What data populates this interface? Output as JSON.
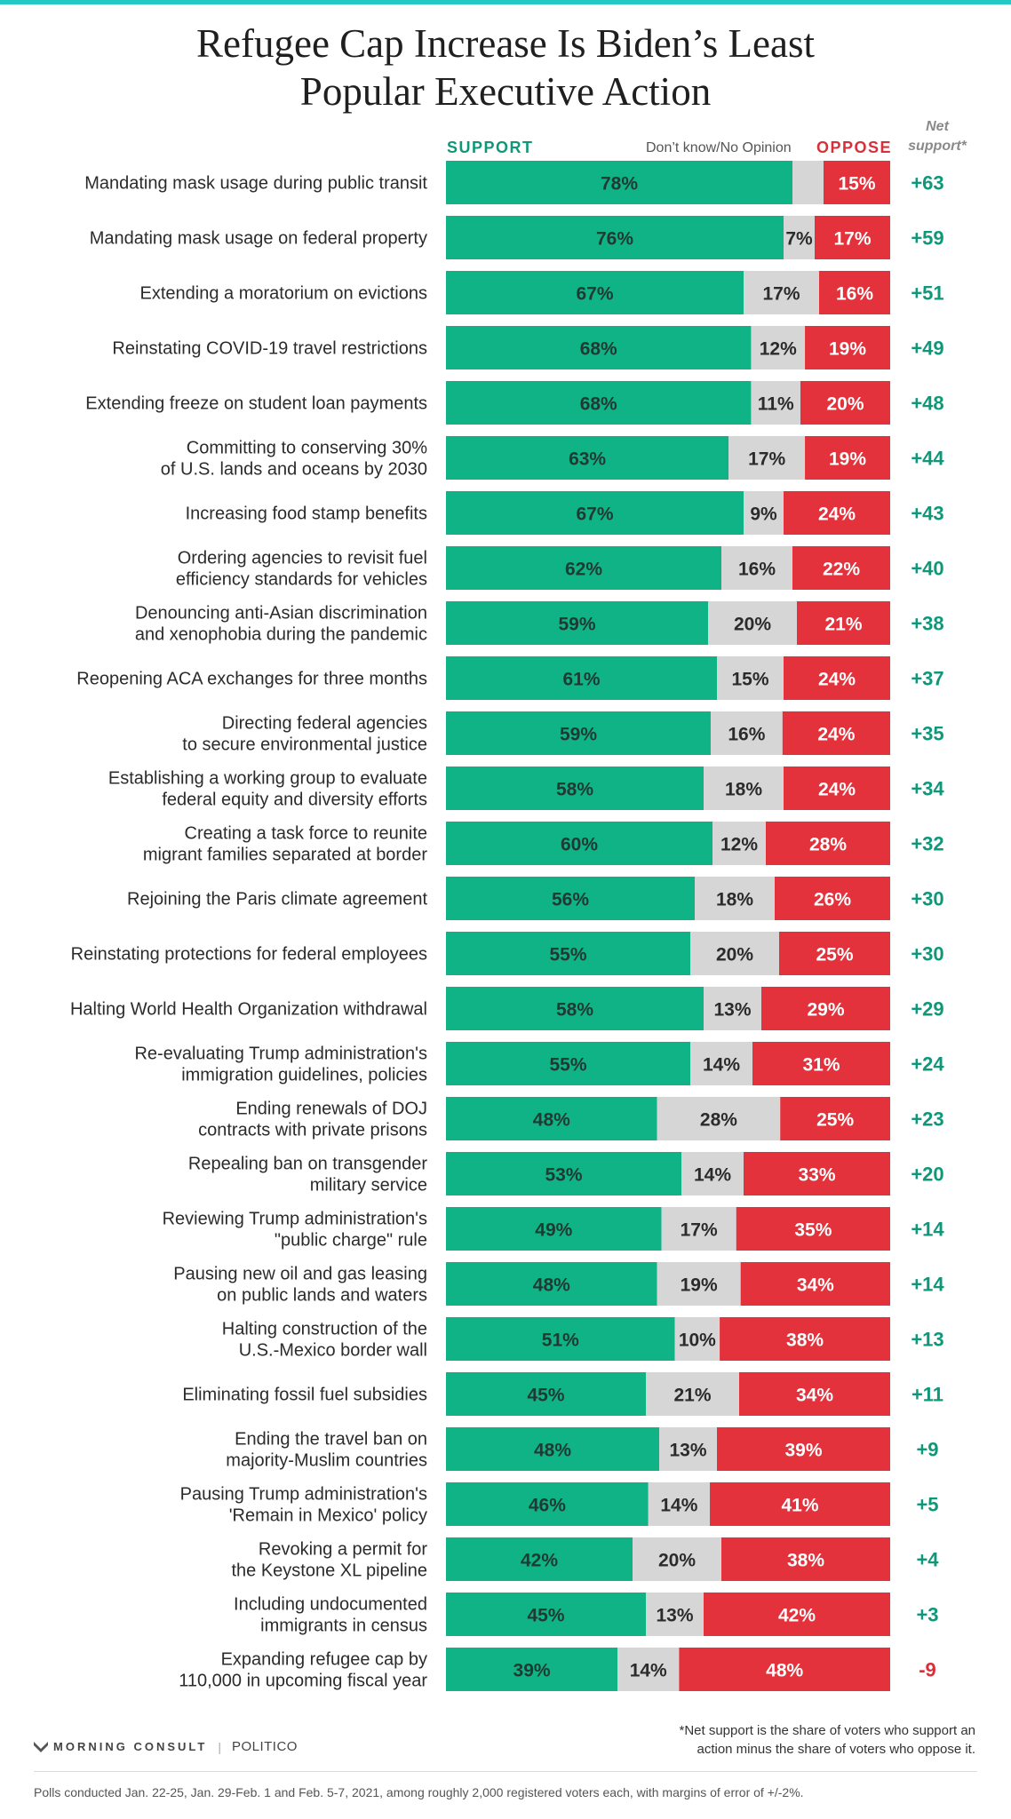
{
  "title_lines": [
    "Refugee Cap Increase Is Biden’s Least",
    "Popular Executive Action"
  ],
  "headers": {
    "support": "SUPPORT",
    "dont_know": "Don’t know/No Opinion",
    "oppose": "OPPOSE",
    "net_line1": "Net",
    "net_line2": "support*"
  },
  "colors": {
    "support": "#10b386",
    "dont_know": "#d6d6d6",
    "oppose": "#e3323b",
    "net_positive": "#10977a",
    "net_negative": "#d8303b",
    "accent_bar": "#25c9c3"
  },
  "chart_data": {
    "type": "bar",
    "orientation": "horizontal",
    "stacked": true,
    "title": "Refugee Cap Increase Is Biden’s Least Popular Executive Action",
    "series_names": [
      "Support",
      "Don’t know/No Opinion",
      "Oppose"
    ],
    "rows": [
      {
        "label": [
          "Mandating mask usage during public transit"
        ],
        "support": 78,
        "dk": 7,
        "oppose": 15,
        "dk_label": "",
        "net": "+63"
      },
      {
        "label": [
          "Mandating mask usage on federal property"
        ],
        "support": 76,
        "dk": 7,
        "oppose": 17,
        "dk_label": "7%",
        "net": "+59"
      },
      {
        "label": [
          "Extending a moratorium on evictions"
        ],
        "support": 67,
        "dk": 17,
        "oppose": 16,
        "dk_label": "17%",
        "net": "+51"
      },
      {
        "label": [
          "Reinstating COVID-19 travel restrictions"
        ],
        "support": 68,
        "dk": 12,
        "oppose": 19,
        "dk_label": "12%",
        "net": "+49"
      },
      {
        "label": [
          "Extending freeze on student loan payments"
        ],
        "support": 68,
        "dk": 11,
        "oppose": 20,
        "dk_label": "11%",
        "net": "+48"
      },
      {
        "label": [
          "Committing to conserving 30%",
          "of U.S. lands and oceans by 2030"
        ],
        "support": 63,
        "dk": 17,
        "oppose": 19,
        "dk_label": "17%",
        "net": "+44"
      },
      {
        "label": [
          "Increasing food stamp benefits"
        ],
        "support": 67,
        "dk": 9,
        "oppose": 24,
        "dk_label": "9%",
        "net": "+43"
      },
      {
        "label": [
          "Ordering agencies to revisit fuel",
          "efficiency standards for vehicles"
        ],
        "support": 62,
        "dk": 16,
        "oppose": 22,
        "dk_label": "16%",
        "net": "+40"
      },
      {
        "label": [
          "Denouncing anti-Asian discrimination",
          "and xenophobia during the pandemic"
        ],
        "support": 59,
        "dk": 20,
        "oppose": 21,
        "dk_label": "20%",
        "net": "+38"
      },
      {
        "label": [
          "Reopening ACA exchanges for three months"
        ],
        "support": 61,
        "dk": 15,
        "oppose": 24,
        "dk_label": "15%",
        "net": "+37"
      },
      {
        "label": [
          "Directing federal agencies",
          "to secure environmental justice"
        ],
        "support": 59,
        "dk": 16,
        "oppose": 24,
        "dk_label": "16%",
        "net": "+35"
      },
      {
        "label": [
          "Establishing a working group to evaluate",
          "federal equity and diversity efforts"
        ],
        "support": 58,
        "dk": 18,
        "oppose": 24,
        "dk_label": "18%",
        "net": "+34"
      },
      {
        "label": [
          "Creating a task force to reunite",
          "migrant families separated at border"
        ],
        "support": 60,
        "dk": 12,
        "oppose": 28,
        "dk_label": "12%",
        "net": "+32"
      },
      {
        "label": [
          "Rejoining the Paris climate agreement"
        ],
        "support": 56,
        "dk": 18,
        "oppose": 26,
        "dk_label": "18%",
        "net": "+30"
      },
      {
        "label": [
          "Reinstating protections for federal employees"
        ],
        "support": 55,
        "dk": 20,
        "oppose": 25,
        "dk_label": "20%",
        "net": "+30"
      },
      {
        "label": [
          "Halting World Health Organization withdrawal"
        ],
        "support": 58,
        "dk": 13,
        "oppose": 29,
        "dk_label": "13%",
        "net": "+29"
      },
      {
        "label": [
          "Re-evaluating Trump administration's",
          "immigration guidelines, policies"
        ],
        "support": 55,
        "dk": 14,
        "oppose": 31,
        "dk_label": "14%",
        "net": "+24"
      },
      {
        "label": [
          "Ending renewals of DOJ",
          "contracts with private prisons"
        ],
        "support": 48,
        "dk": 28,
        "oppose": 25,
        "dk_label": "28%",
        "net": "+23"
      },
      {
        "label": [
          "Repealing ban on transgender",
          "military service"
        ],
        "support": 53,
        "dk": 14,
        "oppose": 33,
        "dk_label": "14%",
        "net": "+20"
      },
      {
        "label": [
          "Reviewing Trump administration's",
          "\"public charge\" rule"
        ],
        "support": 49,
        "dk": 17,
        "oppose": 35,
        "dk_label": "17%",
        "net": "+14"
      },
      {
        "label": [
          "Pausing new oil and gas leasing",
          "on public lands and waters"
        ],
        "support": 48,
        "dk": 19,
        "oppose": 34,
        "dk_label": "19%",
        "net": "+14"
      },
      {
        "label": [
          "Halting construction of the",
          "U.S.-Mexico border wall"
        ],
        "support": 51,
        "dk": 10,
        "oppose": 38,
        "dk_label": "10%",
        "net": "+13"
      },
      {
        "label": [
          "Eliminating fossil fuel subsidies"
        ],
        "support": 45,
        "dk": 21,
        "oppose": 34,
        "dk_label": "21%",
        "net": "+11"
      },
      {
        "label": [
          "Ending the travel ban on",
          "majority-Muslim countries"
        ],
        "support": 48,
        "dk": 13,
        "oppose": 39,
        "dk_label": "13%",
        "net": "+9"
      },
      {
        "label": [
          "Pausing Trump administration's",
          "'Remain in Mexico' policy"
        ],
        "support": 46,
        "dk": 14,
        "oppose": 41,
        "dk_label": "14%",
        "net": "+5"
      },
      {
        "label": [
          "Revoking a permit for",
          "the Keystone XL pipeline"
        ],
        "support": 42,
        "dk": 20,
        "oppose": 38,
        "dk_label": "20%",
        "net": "+4"
      },
      {
        "label": [
          "Including undocumented",
          "immigrants in census"
        ],
        "support": 45,
        "dk": 13,
        "oppose": 42,
        "dk_label": "13%",
        "net": "+3"
      },
      {
        "label": [
          "Expanding refugee cap by",
          "110,000 in upcoming fiscal year"
        ],
        "support": 39,
        "dk": 14,
        "oppose": 48,
        "dk_label": "14%",
        "net": "-9"
      }
    ]
  },
  "footnote_lines": [
    "*Net support is the share of voters who support an",
    "action minus the share of voters who oppose it."
  ],
  "brand": {
    "morning_consult": "MORNING CONSULT",
    "sep": "|",
    "politico": "POLITICO"
  },
  "source": "Polls conducted Jan. 22-25, Jan. 29-Feb. 1 and Feb. 5-7, 2021, among roughly 2,000 registered voters each, with margins of error of +/-2%."
}
